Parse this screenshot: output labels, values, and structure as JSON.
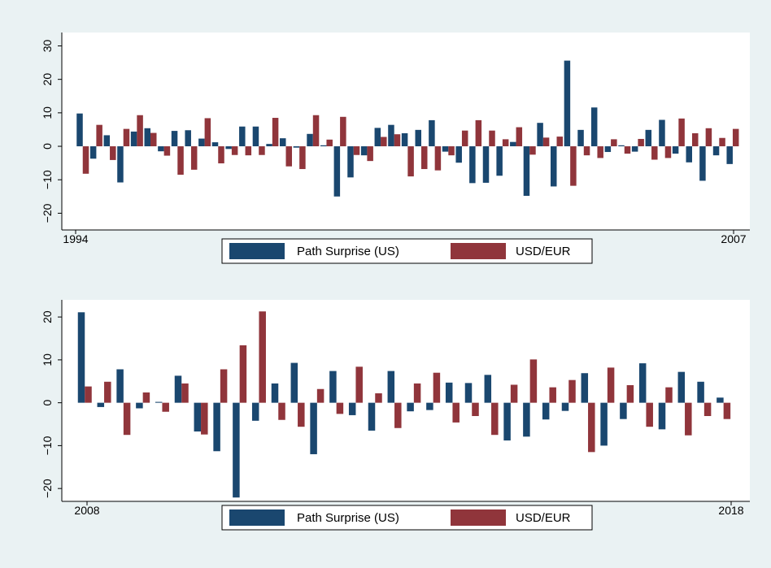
{
  "colors": {
    "page_bg": "#eaf2f3",
    "plot_bg": "#ffffff",
    "series1": "#1a476f",
    "series2": "#90353b"
  },
  "chart_data": [
    {
      "type": "bar",
      "title": "",
      "xlabel": "",
      "ylabel": "",
      "x_start_label": "1994",
      "x_end_label": "2007",
      "y_ticks": [
        "30",
        "20",
        "10",
        "0",
        "−10",
        "−20"
      ],
      "y_tick_values": [
        30,
        20,
        10,
        0,
        -10,
        -20
      ],
      "ylim": [
        -25,
        34
      ],
      "grid": false,
      "legend_position": "bottom",
      "legend": [
        "Path Surprise (US)",
        "USD/EUR"
      ],
      "series": [
        {
          "name": "Path Surprise (US)",
          "values": [
            9.8,
            -3.7,
            3.3,
            -10.8,
            4.4,
            5.4,
            -1.5,
            4.6,
            4.8,
            2.3,
            1.2,
            -0.8,
            5.9,
            5.9,
            0.7,
            2.4,
            -0.4,
            3.7,
            0.3,
            -15.0,
            -9.3,
            -2.7,
            5.5,
            6.4,
            3.9,
            4.9,
            7.8,
            -1.6,
            -4.9,
            -11.0,
            -10.9,
            -8.8,
            1.3,
            -14.8,
            7.0,
            -12.0,
            25.6,
            4.9,
            11.6,
            -1.7,
            0.3,
            -1.6,
            4.9,
            7.9,
            -2.2,
            -4.8,
            -10.3,
            -2.7,
            -5.3
          ]
        },
        {
          "name": "USD/EUR",
          "values": [
            -8.2,
            6.4,
            -4.1,
            5.2,
            9.3,
            4.0,
            -2.8,
            -8.5,
            -7.0,
            8.4,
            -5.1,
            -2.6,
            -2.7,
            -2.6,
            8.5,
            -6.0,
            -6.8,
            9.3,
            2.0,
            8.8,
            -2.6,
            -4.4,
            2.8,
            3.6,
            -9.0,
            -6.8,
            -7.2,
            -2.7,
            4.7,
            7.8,
            4.7,
            2.1,
            5.7,
            -2.5,
            2.6,
            2.9,
            -11.8,
            -2.7,
            -3.5,
            2.1,
            -2.2,
            2.2,
            -4.0,
            -3.5,
            8.3,
            3.9,
            5.4,
            2.5,
            5.2
          ]
        }
      ]
    },
    {
      "type": "bar",
      "title": "",
      "xlabel": "",
      "ylabel": "",
      "x_start_label": "2008",
      "x_end_label": "2018",
      "y_ticks": [
        "20",
        "10",
        "0",
        "−10",
        "−20"
      ],
      "y_tick_values": [
        20,
        10,
        0,
        -10,
        -20
      ],
      "ylim": [
        -23,
        24
      ],
      "grid": false,
      "legend_position": "bottom",
      "legend": [
        "Path Surprise (US)",
        "USD/EUR"
      ],
      "series": [
        {
          "name": "Path Surprise (US)",
          "values": [
            21.1,
            -1.0,
            7.8,
            -1.3,
            0.2,
            6.3,
            -6.7,
            -11.3,
            -22.1,
            -4.2,
            4.5,
            9.3,
            -12.0,
            7.4,
            -2.9,
            -6.5,
            7.4,
            -2.0,
            -1.7,
            4.7,
            4.6,
            6.5,
            -8.8,
            -7.9,
            -3.9,
            -1.9,
            6.9,
            -10.0,
            -3.8,
            9.2,
            -6.2,
            7.2,
            4.9,
            1.2
          ]
        },
        {
          "name": "USD/EUR",
          "values": [
            3.8,
            4.9,
            -7.5,
            2.4,
            -2.1,
            4.5,
            -7.4,
            7.8,
            13.4,
            21.3,
            -4.0,
            -5.6,
            3.2,
            -2.6,
            8.4,
            2.2,
            -5.9,
            4.5,
            7.0,
            -4.6,
            -3.1,
            -7.5,
            4.2,
            10.1,
            3.6,
            5.3,
            -11.5,
            8.2,
            4.1,
            -5.6,
            3.6,
            -7.6,
            -3.1,
            -3.8
          ]
        }
      ]
    }
  ]
}
